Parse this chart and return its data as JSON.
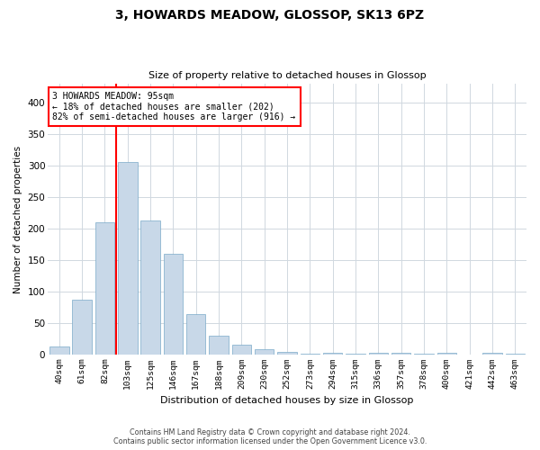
{
  "title": "3, HOWARDS MEADOW, GLOSSOP, SK13 6PZ",
  "subtitle": "Size of property relative to detached houses in Glossop",
  "xlabel": "Distribution of detached houses by size in Glossop",
  "ylabel": "Number of detached properties",
  "bar_color": "#c8d8e8",
  "bar_edge_color": "#7aaac8",
  "categories": [
    "40sqm",
    "61sqm",
    "82sqm",
    "103sqm",
    "125sqm",
    "146sqm",
    "167sqm",
    "188sqm",
    "209sqm",
    "230sqm",
    "252sqm",
    "273sqm",
    "294sqm",
    "315sqm",
    "336sqm",
    "357sqm",
    "378sqm",
    "400sqm",
    "421sqm",
    "442sqm",
    "463sqm"
  ],
  "values": [
    14,
    88,
    210,
    305,
    213,
    160,
    65,
    30,
    16,
    9,
    5,
    2,
    3,
    2,
    3,
    3,
    2,
    3,
    1,
    3,
    2
  ],
  "property_line_x": 2.5,
  "annotation_line1": "3 HOWARDS MEADOW: 95sqm",
  "annotation_line2": "← 18% of detached houses are smaller (202)",
  "annotation_line3": "82% of semi-detached houses are larger (916) →",
  "annotation_box_color": "white",
  "annotation_box_edgecolor": "red",
  "vline_color": "red",
  "ylim": [
    0,
    430
  ],
  "yticks": [
    0,
    50,
    100,
    150,
    200,
    250,
    300,
    350,
    400
  ],
  "grid_color": "#d0d8e0",
  "background_color": "white",
  "footer_line1": "Contains HM Land Registry data © Crown copyright and database right 2024.",
  "footer_line2": "Contains public sector information licensed under the Open Government Licence v3.0.",
  "fig_width": 6.0,
  "fig_height": 5.0,
  "dpi": 100
}
